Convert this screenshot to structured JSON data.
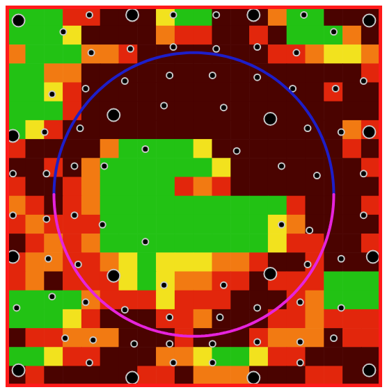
{
  "chart_data": {
    "type": "heatmap",
    "xlim": [
      0,
      20
    ],
    "ylim": [
      0,
      20
    ],
    "tick_labels": false,
    "levels": [
      0,
      1,
      2,
      3,
      4
    ],
    "colors": [
      "#4a0300",
      "#e2260c",
      "#f27a12",
      "#f2e21e",
      "#22c214"
    ],
    "cells": [
      [
        4,
        4,
        4,
        1,
        1,
        0,
        0,
        0,
        3,
        4,
        4,
        0,
        0,
        0,
        2,
        4,
        4,
        0,
        0,
        0
      ],
      [
        4,
        4,
        4,
        3,
        0,
        0,
        0,
        0,
        2,
        1,
        1,
        0,
        0,
        1,
        0,
        4,
        4,
        4,
        2,
        0
      ],
      [
        2,
        4,
        4,
        4,
        2,
        2,
        1,
        0,
        0,
        0,
        0,
        0,
        0,
        0,
        1,
        1,
        2,
        3,
        3,
        2
      ],
      [
        4,
        4,
        2,
        2,
        0,
        0,
        0,
        0,
        0,
        0,
        0,
        0,
        0,
        0,
        0,
        0,
        0,
        0,
        0,
        1
      ],
      [
        4,
        4,
        3,
        1,
        0,
        0,
        0,
        0,
        0,
        0,
        0,
        0,
        0,
        0,
        0,
        0,
        0,
        1,
        0,
        0
      ],
      [
        4,
        4,
        4,
        1,
        0,
        0,
        0,
        0,
        0,
        0,
        0,
        0,
        0,
        0,
        0,
        0,
        0,
        0,
        0,
        0
      ],
      [
        4,
        3,
        1,
        0,
        0,
        0,
        0,
        0,
        0,
        0,
        0,
        0,
        0,
        0,
        0,
        0,
        0,
        0,
        2,
        1
      ],
      [
        1,
        0,
        0,
        0,
        0,
        2,
        4,
        4,
        4,
        4,
        3,
        0,
        0,
        0,
        0,
        0,
        0,
        0,
        1,
        0
      ],
      [
        0,
        0,
        1,
        0,
        2,
        4,
        4,
        4,
        4,
        4,
        4,
        3,
        0,
        0,
        0,
        0,
        0,
        0,
        0,
        1
      ],
      [
        1,
        0,
        0,
        1,
        2,
        4,
        4,
        4,
        4,
        1,
        2,
        1,
        0,
        0,
        0,
        0,
        0,
        0,
        0,
        0
      ],
      [
        2,
        1,
        0,
        1,
        2,
        4,
        4,
        4,
        4,
        4,
        4,
        4,
        4,
        4,
        4,
        1,
        0,
        0,
        0,
        1
      ],
      [
        1,
        2,
        1,
        1,
        1,
        4,
        4,
        4,
        4,
        4,
        4,
        4,
        4,
        4,
        3,
        2,
        0,
        0,
        0,
        0
      ],
      [
        0,
        1,
        2,
        1,
        2,
        4,
        4,
        4,
        4,
        4,
        4,
        4,
        4,
        4,
        3,
        1,
        1,
        0,
        0,
        1
      ],
      [
        1,
        2,
        2,
        1,
        1,
        2,
        3,
        4,
        3,
        3,
        3,
        2,
        2,
        1,
        0,
        0,
        1,
        0,
        0,
        0
      ],
      [
        1,
        2,
        0,
        1,
        1,
        1,
        3,
        4,
        3,
        2,
        2,
        1,
        1,
        0,
        1,
        1,
        1,
        4,
        4,
        4
      ],
      [
        4,
        4,
        4,
        4,
        2,
        1,
        1,
        1,
        3,
        1,
        1,
        1,
        0,
        0,
        0,
        1,
        2,
        4,
        4,
        4
      ],
      [
        4,
        4,
        4,
        3,
        1,
        0,
        0,
        0,
        1,
        1,
        2,
        0,
        0,
        0,
        1,
        1,
        2,
        1,
        1,
        1
      ],
      [
        0,
        1,
        1,
        2,
        2,
        2,
        0,
        0,
        0,
        1,
        0,
        0,
        0,
        1,
        2,
        2,
        2,
        0,
        1,
        1
      ],
      [
        4,
        4,
        3,
        1,
        1,
        0,
        0,
        0,
        2,
        2,
        3,
        4,
        4,
        3,
        1,
        1,
        0,
        0,
        0,
        0
      ],
      [
        0,
        1,
        0,
        0,
        0,
        0,
        0,
        1,
        1,
        0,
        2,
        2,
        2,
        0,
        0,
        0,
        1,
        1,
        0,
        0
      ]
    ],
    "points": {
      "x": [
        0.6,
        6.7,
        13.2,
        19.4,
        0.3,
        5.7,
        14.1,
        19.4,
        0.3,
        5.7,
        14.1,
        19.6,
        0.6,
        6.7,
        13.2,
        19.4,
        3.0,
        4.5,
        6.6,
        8.9,
        11.2,
        13.4,
        15.5,
        17.5,
        2.4,
        4.2,
        6.3,
        8.7,
        11.0,
        13.4,
        15.3,
        17.6,
        19.1,
        2.0,
        3.9,
        8.4,
        11.6,
        16.1,
        17.9,
        0.3,
        2.1,
        3.6,
        5.2,
        7.4,
        12.3,
        14.7,
        16.6,
        19.1,
        0.3,
        2.1,
        3.6,
        5.1,
        7.4,
        14.7,
        16.2,
        19.1,
        2.2,
        3.8,
        8.4,
        11.6,
        16.1,
        17.9,
        0.5,
        2.4,
        4.2,
        6.3,
        8.7,
        11.4,
        13.4,
        15.7,
        17.9,
        3.1,
        4.6,
        6.8,
        8.7,
        11.0,
        13.4,
        15.7,
        17.5,
        4.4,
        8.9,
        11.0,
        15.7,
        4.4,
        15.9,
        8.9,
        11.2
      ],
      "y": [
        0.7,
        0.4,
        0.4,
        0.7,
        6.8,
        5.7,
        5.9,
        6.6,
        13.2,
        14.2,
        14.1,
        13.2,
        19.2,
        19.6,
        19.6,
        19.2,
        1.3,
        2.4,
        2.2,
        2.1,
        2.2,
        2.1,
        2.4,
        1.3,
        4.6,
        4.3,
        3.9,
        3.6,
        3.6,
        3.7,
        4.3,
        4.3,
        3.9,
        6.6,
        6.4,
        5.2,
        5.3,
        6.4,
        6.6,
        8.8,
        8.8,
        8.4,
        8.4,
        7.5,
        7.6,
        8.4,
        8.9,
        8.8,
        11.0,
        11.2,
        11.0,
        11.5,
        12.4,
        11.5,
        11.8,
        11.0,
        13.3,
        13.6,
        14.7,
        14.7,
        13.6,
        13.3,
        15.9,
        15.3,
        15.6,
        16.0,
        16.4,
        16.4,
        15.9,
        15.6,
        15.9,
        17.5,
        17.6,
        17.8,
        17.8,
        17.8,
        17.7,
        17.7,
        17.5,
        18.8,
        18.8,
        18.8,
        18.8,
        0.4,
        0.4,
        0.4,
        0.4
      ],
      "sizes": [
        2,
        2,
        2,
        2,
        2,
        2,
        2,
        2,
        2,
        2,
        2,
        2,
        2,
        2,
        2,
        2,
        1,
        1,
        1,
        1,
        1,
        1,
        1,
        1,
        1,
        1,
        1,
        1,
        1,
        1,
        1,
        1,
        1,
        1,
        1,
        1,
        1,
        1,
        1,
        1,
        1,
        1,
        1,
        1,
        1,
        1,
        1,
        1,
        1,
        1,
        1,
        1,
        1,
        1,
        1,
        1,
        1,
        1,
        1,
        1,
        1,
        1,
        1,
        1,
        1,
        1,
        1,
        1,
        1,
        1,
        1,
        1,
        1,
        1,
        1,
        1,
        1,
        1,
        1,
        1,
        1,
        1,
        1,
        1,
        1,
        1,
        1
      ]
    },
    "circle": {
      "x": 10.0,
      "y": 9.9,
      "r": 7.5,
      "colors": [
        "#1e1ec8",
        "#e624dc"
      ]
    }
  }
}
